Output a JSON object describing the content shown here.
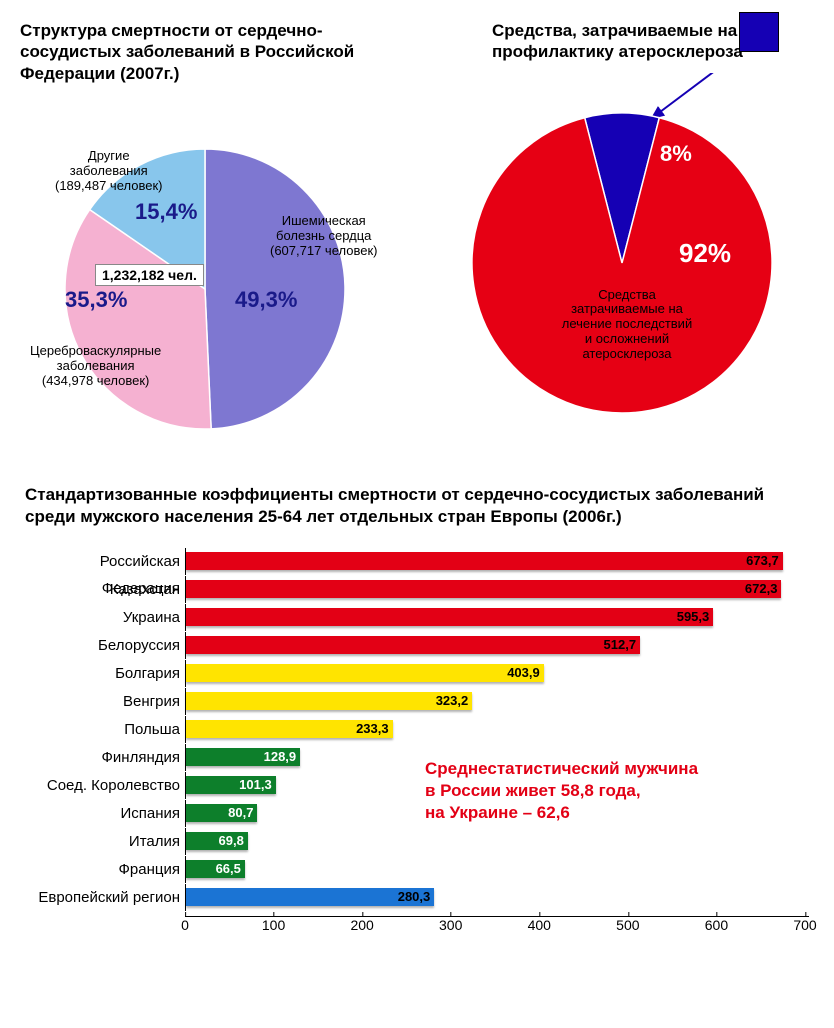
{
  "pie1": {
    "title": "Структура смертности от сердечно-сосудистых заболеваний в Российской Федерации (2007г.)",
    "center_label": "1,232,182 чел.",
    "slices": [
      {
        "label_lines": [
          "Ишемическая",
          "болезнь сердца",
          "(607,717 человек)"
        ],
        "pct_label": "49,3%",
        "value": 49.3,
        "color": "#7e77d1"
      },
      {
        "label_lines": [
          "Цереброваскулярные",
          "заболевания",
          "(434,978 человек)"
        ],
        "pct_label": "35,3%",
        "value": 35.3,
        "color": "#f5b1d1"
      },
      {
        "label_lines": [
          "Другие",
          "заболевания",
          "(189,487 человек)"
        ],
        "pct_label": "15,4%",
        "value": 15.4,
        "color": "#88c6ec"
      }
    ],
    "radius": 140,
    "stroke_color": "#3a3a9a",
    "pct_color": "#1a1a8a"
  },
  "pie2": {
    "title": "Средства, затрачиваемые на  профилактику атеросклероза",
    "slices": [
      {
        "label_lines": [
          "Средства",
          "затрачиваемые на",
          "лечение последствий",
          "и осложнений",
          "атеросклероза"
        ],
        "pct_label": "92%",
        "value": 92,
        "color": "#e60014"
      },
      {
        "label_lines": [],
        "pct_label": "8%",
        "value": 8,
        "color": "#1500b4"
      }
    ],
    "radius": 150,
    "pct_color": "#ffffff",
    "body_text_color": "#000000"
  },
  "bar": {
    "title": "Стандартизованные коэффициенты смертности от сердечно-сосудистых заболеваний среди мужского населения 25-64 лет отдельных стран Европы (2006г.)",
    "xmax": 700,
    "xtick_step": 100,
    "categories": [
      {
        "label": "Российская Федерация",
        "value": 673.7,
        "val_label": "673,7",
        "color": "#e30015"
      },
      {
        "label": "Казахстан",
        "value": 672.3,
        "val_label": "672,3",
        "color": "#e30015"
      },
      {
        "label": "Украина",
        "value": 595.3,
        "val_label": "595,3",
        "color": "#e30015"
      },
      {
        "label": "Белоруссия",
        "value": 512.7,
        "val_label": "512,7",
        "color": "#e30015"
      },
      {
        "label": "Болгария",
        "value": 403.9,
        "val_label": "403,9",
        "color": "#ffe400"
      },
      {
        "label": "Венгрия",
        "value": 323.2,
        "val_label": "323,2",
        "color": "#ffe400"
      },
      {
        "label": "Польша",
        "value": 233.3,
        "val_label": "233,3",
        "color": "#ffe400"
      },
      {
        "label": "Финляндия",
        "value": 128.9,
        "val_label": "128,9",
        "color": "#0d7f2b",
        "val_color": "#fff"
      },
      {
        "label": "Соед. Королевство",
        "value": 101.3,
        "val_label": "101,3",
        "color": "#0d7f2b",
        "val_color": "#fff"
      },
      {
        "label": "Испания",
        "value": 80.7,
        "val_label": "80,7",
        "color": "#0d7f2b",
        "val_color": "#fff"
      },
      {
        "label": "Италия",
        "value": 69.8,
        "val_label": "69,8",
        "color": "#0d7f2b",
        "val_color": "#fff"
      },
      {
        "label": "Франция",
        "value": 66.5,
        "val_label": "66,5",
        "color": "#0d7f2b",
        "val_color": "#fff"
      },
      {
        "label": "Европейский регион",
        "value": 280.3,
        "val_label": "280,3",
        "color": "#1b74d4"
      }
    ],
    "annotation": "Среднестатистический мужчина\nв России живет 58,8 года,\nна Украине – 62,6"
  }
}
